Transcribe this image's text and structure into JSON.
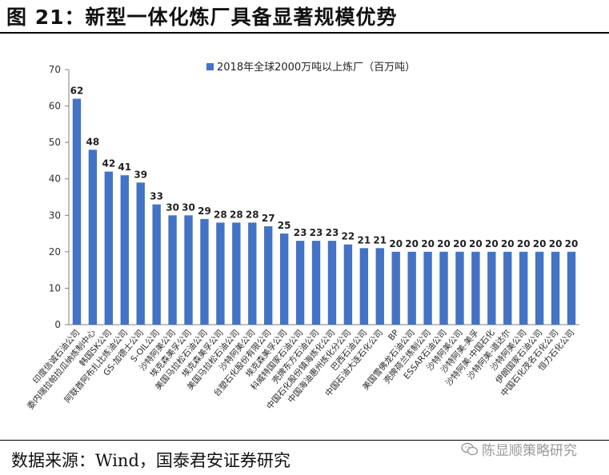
{
  "header": {
    "title": "图 21：新型一体化炼厂具备显著规模优势"
  },
  "footer": {
    "source": "数据来源：Wind，国泰君安证券研究",
    "watermark": "陈显顺策略研究",
    "watermark_icon": "wechat-icon"
  },
  "colors": {
    "bar": "#4472C4",
    "axis": "#7f7f7f"
  },
  "chart_data": {
    "type": "bar",
    "title": "",
    "xlabel": "",
    "ylabel": "",
    "ylim": [
      0,
      70
    ],
    "yticks": [
      0,
      10,
      20,
      30,
      40,
      50,
      60,
      70
    ],
    "grid": false,
    "legend": {
      "position": "top",
      "entries": [
        "2018年全球2000万吨以上炼厂（百万吨）"
      ]
    },
    "series": [
      {
        "name": "2018年全球2000万吨以上炼厂（百万吨）",
        "values": [
          62,
          48,
          42,
          41,
          39,
          33,
          30,
          30,
          29,
          28,
          28,
          28,
          27,
          25,
          23,
          23,
          23,
          22,
          21,
          21,
          20,
          20,
          20,
          20,
          20,
          20,
          20,
          20,
          20,
          20,
          20,
          20
        ]
      }
    ],
    "categories": [
      "印度信诚石油公司",
      "委内瑞拉帕拉瓜纳炼制中心",
      "韩国SK公司",
      "阿联酋阿布扎比炼油公司",
      "GS-加德士公司",
      "S-OIL公司",
      "沙特阿美公司",
      "埃克森美孚公司",
      "美国马拉松石油公司",
      "埃克森美孚公司",
      "美国马拉松石油公司",
      "沙特阿美公司",
      "台塑石化股份有限公司",
      "埃克森美孚公司",
      "科威特国家石油公司",
      "壳牌东方石油公司",
      "中国石化股份镇海炼化公司",
      "中国海油惠州炼化分公司",
      "巴西石油公司",
      "中国石油大连石化公司",
      "BP",
      "美国雪佛龙石油公司",
      "壳牌荷兰炼制公司",
      "ESSAR石油公司",
      "沙特阿美公司",
      "沙特阿美-美孚",
      "沙特阿美-中国石化",
      "沙特阿美-道达尔",
      "沙特阿美公司",
      "伊朗国家石油公司",
      "中国石化茂名石化公司",
      "恒力石化公司"
    ]
  }
}
